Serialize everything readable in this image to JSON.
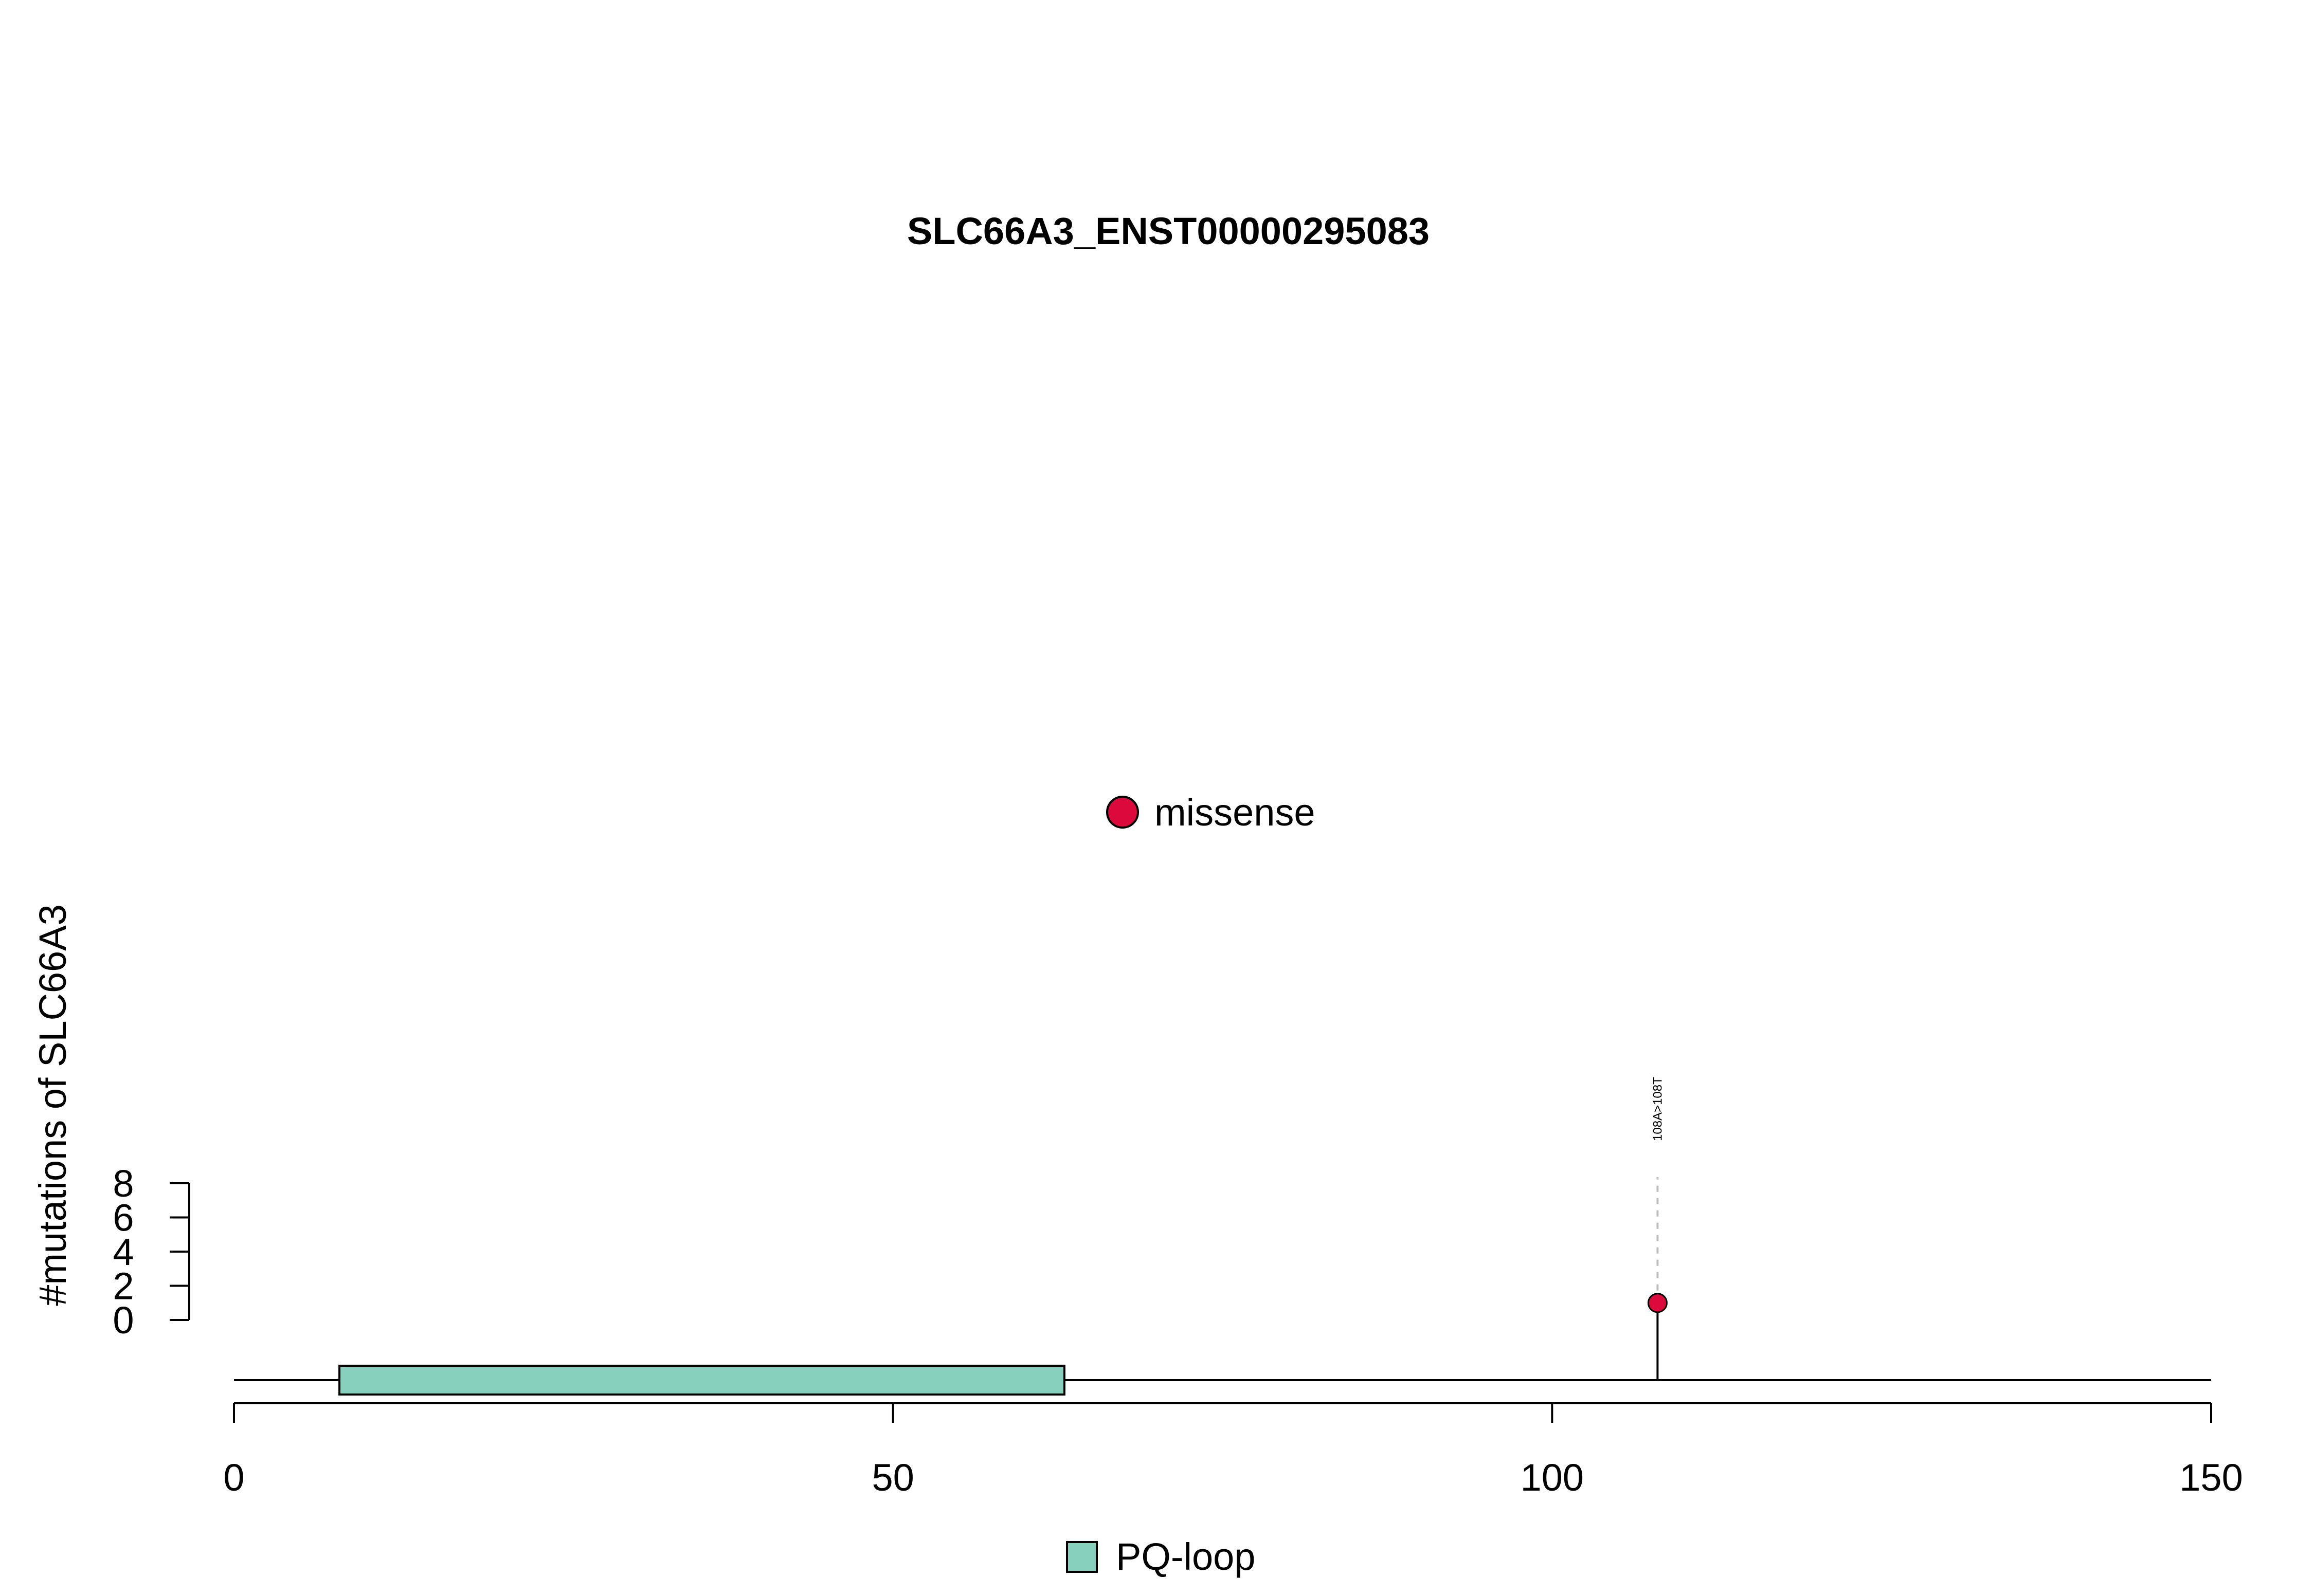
{
  "chart_data": {
    "type": "lollipop",
    "title": "SLC66A3_ENST00000295083",
    "ylabel": "#mutations of SLC66A3",
    "xlim": [
      0,
      150
    ],
    "x_ticks": [
      0,
      50,
      100,
      150
    ],
    "ylim": [
      0,
      8
    ],
    "y_ticks": [
      0,
      2,
      4,
      6,
      8
    ],
    "mutation_legend": [
      {
        "label": "missense",
        "color": "#dc0a3c"
      }
    ],
    "domain_legend": [
      {
        "label": "PQ-loop",
        "color": "#87d0bd"
      }
    ],
    "domains": [
      {
        "name": "PQ-loop",
        "start": 8,
        "end": 63,
        "color": "#87d0bd"
      }
    ],
    "mutations": [
      {
        "position": 108,
        "count": 1,
        "label": "108A>108T",
        "type": "missense",
        "color": "#dc0a3c"
      }
    ],
    "protein_length": 150
  }
}
